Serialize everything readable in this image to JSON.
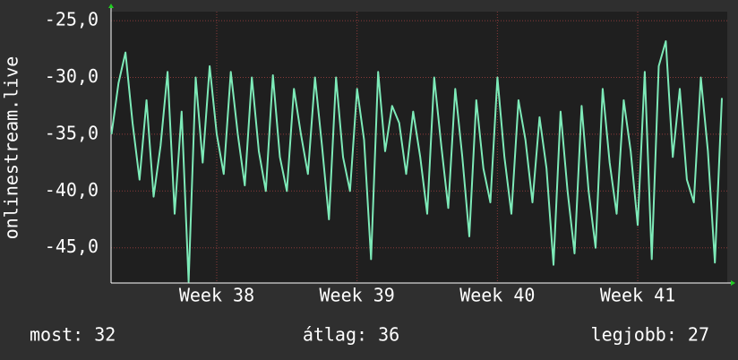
{
  "chart_data": {
    "type": "line",
    "y_label": "onlinestream.live",
    "x": [
      37.25,
      37.3,
      37.35,
      37.4,
      37.45,
      37.5,
      37.55,
      37.6,
      37.65,
      37.7,
      37.75,
      37.8,
      37.85,
      37.9,
      37.95,
      38.0,
      38.05,
      38.1,
      38.15,
      38.2,
      38.25,
      38.3,
      38.35,
      38.4,
      38.45,
      38.5,
      38.55,
      38.6,
      38.65,
      38.7,
      38.75,
      38.8,
      38.85,
      38.9,
      38.95,
      39.0,
      39.05,
      39.1,
      39.15,
      39.2,
      39.25,
      39.3,
      39.35,
      39.4,
      39.45,
      39.5,
      39.55,
      39.6,
      39.65,
      39.7,
      39.75,
      39.8,
      39.85,
      39.9,
      39.95,
      40.0,
      40.05,
      40.1,
      40.15,
      40.2,
      40.25,
      40.3,
      40.35,
      40.4,
      40.45,
      40.5,
      40.55,
      40.6,
      40.65,
      40.7,
      40.75,
      40.8,
      40.85,
      40.9,
      40.95,
      41.0,
      41.05,
      41.1,
      41.15,
      41.2,
      41.25,
      41.3,
      41.35,
      41.4,
      41.45,
      41.5,
      41.55,
      41.6
    ],
    "series": [
      {
        "color": "#7deab8",
        "values": [
          -35,
          -30.5,
          -27.8,
          -34,
          -39,
          -32,
          -40.5,
          -36,
          -29.5,
          -42,
          -33,
          -48,
          -30,
          -37.5,
          -29,
          -35,
          -38.5,
          -29.5,
          -35,
          -39.5,
          -30,
          -36.5,
          -40,
          -29.8,
          -37,
          -40,
          -31,
          -35,
          -38.5,
          -30,
          -36,
          -42.5,
          -30,
          -37,
          -40,
          -31,
          -35.5,
          -46,
          -29.5,
          -36.5,
          -32.5,
          -34,
          -38.5,
          -33,
          -37,
          -42,
          -30,
          -36,
          -41.5,
          -31,
          -37,
          -44,
          -32,
          -38,
          -41,
          -30,
          -37,
          -42,
          -32,
          -35.5,
          -41,
          -33.5,
          -38,
          -46.5,
          -33,
          -40,
          -45.5,
          -32.5,
          -40,
          -45,
          -31,
          -37.5,
          -42,
          -32,
          -36.5,
          -43,
          -29.5,
          -46,
          -29,
          -26.8,
          -37,
          -31,
          -39,
          -41,
          -30,
          -36.5,
          -46.3,
          -31.8
        ]
      }
    ],
    "xlim": [
      37.247,
      41.638
    ],
    "xticks": [
      {
        "value": 38,
        "label": "Week 38"
      },
      {
        "value": 39,
        "label": "Week 39"
      },
      {
        "value": 40,
        "label": "Week 40"
      },
      {
        "value": 41,
        "label": "Week 41"
      }
    ],
    "ylim": [
      -48.1,
      -24.2
    ],
    "yticks": [
      {
        "value": -45,
        "label": "-45,0"
      },
      {
        "value": -40,
        "label": "-40,0"
      },
      {
        "value": -35,
        "label": "-35,0"
      },
      {
        "value": -30,
        "label": "-30,0"
      },
      {
        "value": -25,
        "label": "-25,0"
      }
    ],
    "grid": true,
    "footer": [
      "most: 32",
      "átlag: 36",
      "legjobb: 27"
    ]
  }
}
